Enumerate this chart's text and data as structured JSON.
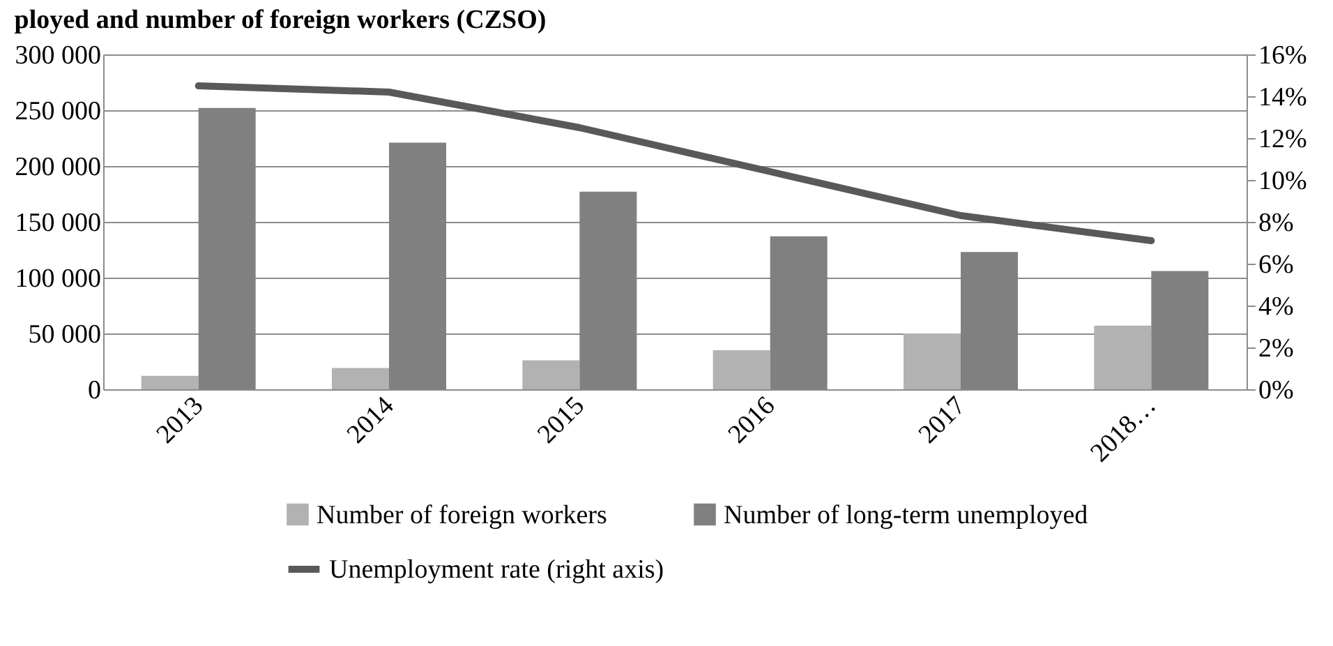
{
  "chart_data": {
    "type": "bar",
    "title": "ployed and number of foreign workers (CZSO)",
    "categories": [
      "2013",
      "2014",
      "2015",
      "2016",
      "2017",
      "2018…"
    ],
    "series": [
      {
        "name": "Number of foreign workers",
        "color": "#b2b2b2",
        "values": [
          12000,
          19000,
          26000,
          35000,
          50000,
          57000
        ]
      },
      {
        "name": "Number of long-term unemployed",
        "color": "#808080",
        "values": [
          252000,
          221000,
          177000,
          137000,
          123000,
          106000
        ]
      },
      {
        "name": "Unemployment rate (right axis)",
        "color": "#595959",
        "type": "line",
        "axis": "y2",
        "values": [
          14.5,
          14.2,
          12.5,
          10.4,
          8.3,
          7.1
        ]
      }
    ],
    "ylim": [
      0,
      300000
    ],
    "yticks": [
      {
        "value": 0,
        "label": "0"
      },
      {
        "value": 50000,
        "label": "50 000"
      },
      {
        "value": 100000,
        "label": "100 000"
      },
      {
        "value": 150000,
        "label": "150 000"
      },
      {
        "value": 200000,
        "label": "200 000"
      },
      {
        "value": 250000,
        "label": "250 000"
      },
      {
        "value": 300000,
        "label": "300 000"
      }
    ],
    "y2lim": [
      0,
      16
    ],
    "y2ticks": [
      {
        "value": 0,
        "label": "0%"
      },
      {
        "value": 2,
        "label": "2%"
      },
      {
        "value": 4,
        "label": "4%"
      },
      {
        "value": 6,
        "label": "6%"
      },
      {
        "value": 8,
        "label": "8%"
      },
      {
        "value": 10,
        "label": "10%"
      },
      {
        "value": 12,
        "label": "12%"
      },
      {
        "value": 14,
        "label": "14%"
      },
      {
        "value": 16,
        "label": "16%"
      }
    ],
    "grid": "y",
    "legend": "bottom",
    "marker": "none",
    "line_style": "solid"
  }
}
